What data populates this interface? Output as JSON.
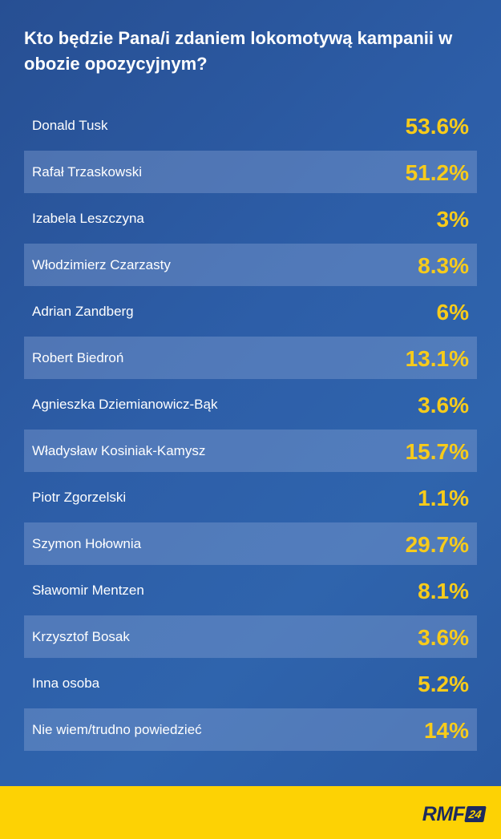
{
  "title": "Kto będzie Pana/i zdaniem lokomotywą kampanii w obozie opozycyjnym?",
  "chart_data": {
    "type": "table",
    "title": "Kto będzie Pana/i zdaniem lokomotywą kampanii w obozie opozycyjnym?",
    "unit": "%",
    "rows": [
      {
        "label": "Donald Tusk",
        "value": 53.6,
        "display": "53.6%"
      },
      {
        "label": "Rafał Trzaskowski",
        "value": 51.2,
        "display": "51.2%"
      },
      {
        "label": "Izabela Leszczyna",
        "value": 3,
        "display": "3%"
      },
      {
        "label": "Włodzimierz Czarzasty",
        "value": 8.3,
        "display": "8.3%"
      },
      {
        "label": "Adrian Zandberg",
        "value": 6,
        "display": "6%"
      },
      {
        "label": "Robert Biedroń",
        "value": 13.1,
        "display": "13.1%"
      },
      {
        "label": "Agnieszka Dziemianowicz-Bąk",
        "value": 3.6,
        "display": "3.6%"
      },
      {
        "label": "Władysław Kosiniak-Kamysz",
        "value": 15.7,
        "display": "15.7%"
      },
      {
        "label": "Piotr Zgorzelski",
        "value": 1.1,
        "display": "1.1%"
      },
      {
        "label": "Szymon Hołownia",
        "value": 29.7,
        "display": "29.7%"
      },
      {
        "label": "Sławomir Mentzen",
        "value": 8.1,
        "display": "8.1%"
      },
      {
        "label": "Krzysztof Bosak",
        "value": 3.6,
        "display": "3.6%"
      },
      {
        "label": "Inna osoba",
        "value": 5.2,
        "display": "5.2%"
      },
      {
        "label": "Nie wiem/trudno powiedzieć",
        "value": 14,
        "display": "14%"
      }
    ]
  },
  "logo": {
    "text": "RMF",
    "badge": "24"
  },
  "colors": {
    "background": "#2d5ea8",
    "value": "#f7cb1b",
    "footer": "#fdd204",
    "logo": "#1d2a5e"
  }
}
